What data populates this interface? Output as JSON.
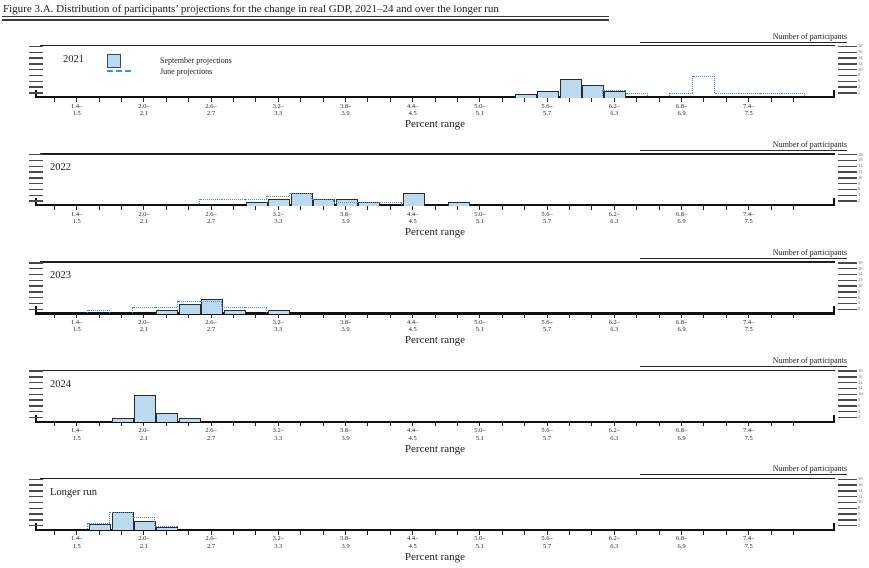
{
  "title": "Figure 3.A. Distribution of participants’ projections for the change in real GDP, 2021–24 and over the longer run",
  "axis": {
    "x_title": "Percent range",
    "y_title": "Number of participants",
    "y_ticks": [
      2,
      4,
      6,
      8,
      10,
      12,
      14,
      16,
      18
    ],
    "x_tick_labels": [
      "1.4–1.5",
      "2.0–2.1",
      "2.6–2.7",
      "3.2–3.3",
      "3.8–3.9",
      "4.4–4.5",
      "5.0–5.1",
      "5.6–5.7",
      "6.2–6.3",
      "6.8–6.9",
      "7.4–7.5"
    ]
  },
  "legend": {
    "september": "September projections",
    "june": "June projections"
  },
  "colors": {
    "bar_fill": "#bdd9f0",
    "bar_border": "#2b2b2b",
    "june_line": "#4292c6",
    "legend_box_border": "#2e4d68"
  },
  "chart_data": [
    {
      "type": "bar",
      "label": "2021",
      "bin_width": 0.2,
      "xlabel": "Percent range",
      "ylabel": "Number of participants",
      "ylim": [
        0,
        18
      ],
      "september": [
        [
          5.4,
          1
        ],
        [
          5.6,
          2
        ],
        [
          5.8,
          6
        ],
        [
          6.0,
          4
        ],
        [
          6.2,
          2
        ]
      ],
      "june": [
        [
          6.2,
          2
        ],
        [
          6.4,
          1
        ],
        [
          6.8,
          1
        ],
        [
          7.0,
          7
        ],
        [
          7.2,
          1
        ],
        [
          7.4,
          1
        ],
        [
          7.6,
          1
        ],
        [
          7.8,
          1
        ]
      ]
    },
    {
      "type": "bar",
      "label": "2022",
      "bin_width": 0.2,
      "xlabel": "Percent range",
      "ylabel": "Number of participants",
      "ylim": [
        0,
        18
      ],
      "september": [
        [
          3.0,
          1
        ],
        [
          3.2,
          2
        ],
        [
          3.4,
          4
        ],
        [
          3.6,
          2
        ],
        [
          3.8,
          2
        ],
        [
          4.0,
          1
        ],
        [
          4.4,
          4
        ],
        [
          4.8,
          1
        ]
      ],
      "june": [
        [
          2.6,
          2
        ],
        [
          2.8,
          2
        ],
        [
          3.0,
          2
        ],
        [
          3.2,
          3
        ],
        [
          3.4,
          4
        ],
        [
          3.6,
          2
        ],
        [
          3.8,
          1
        ],
        [
          4.0,
          1
        ],
        [
          4.2,
          1
        ]
      ]
    },
    {
      "type": "bar",
      "label": "2023",
      "bin_width": 0.2,
      "xlabel": "Percent range",
      "ylabel": "Number of participants",
      "ylim": [
        0,
        18
      ],
      "september": [
        [
          2.2,
          1
        ],
        [
          2.4,
          3
        ],
        [
          2.6,
          5
        ],
        [
          2.8,
          1
        ],
        [
          3.2,
          1
        ]
      ],
      "june": [
        [
          1.6,
          1
        ],
        [
          2.0,
          2
        ],
        [
          2.2,
          2
        ],
        [
          2.4,
          4
        ],
        [
          2.6,
          4
        ],
        [
          2.8,
          2
        ],
        [
          3.0,
          2
        ]
      ]
    },
    {
      "type": "bar",
      "label": "2024",
      "bin_width": 0.2,
      "xlabel": "Percent range",
      "ylabel": "Number of participants",
      "ylim": [
        0,
        18
      ],
      "september": [
        [
          1.8,
          1
        ],
        [
          2.0,
          9
        ],
        [
          2.2,
          3
        ],
        [
          2.4,
          1
        ]
      ],
      "june": []
    },
    {
      "type": "bar",
      "label": "Longer run",
      "bin_width": 0.2,
      "xlabel": "Percent range",
      "ylabel": "Number of participants",
      "ylim": [
        0,
        18
      ],
      "september": [
        [
          1.6,
          2
        ],
        [
          1.8,
          6
        ],
        [
          2.0,
          3
        ],
        [
          2.2,
          1
        ]
      ],
      "june": [
        [
          1.6,
          2
        ],
        [
          1.8,
          6
        ],
        [
          2.0,
          4
        ],
        [
          2.2,
          1
        ]
      ]
    }
  ]
}
